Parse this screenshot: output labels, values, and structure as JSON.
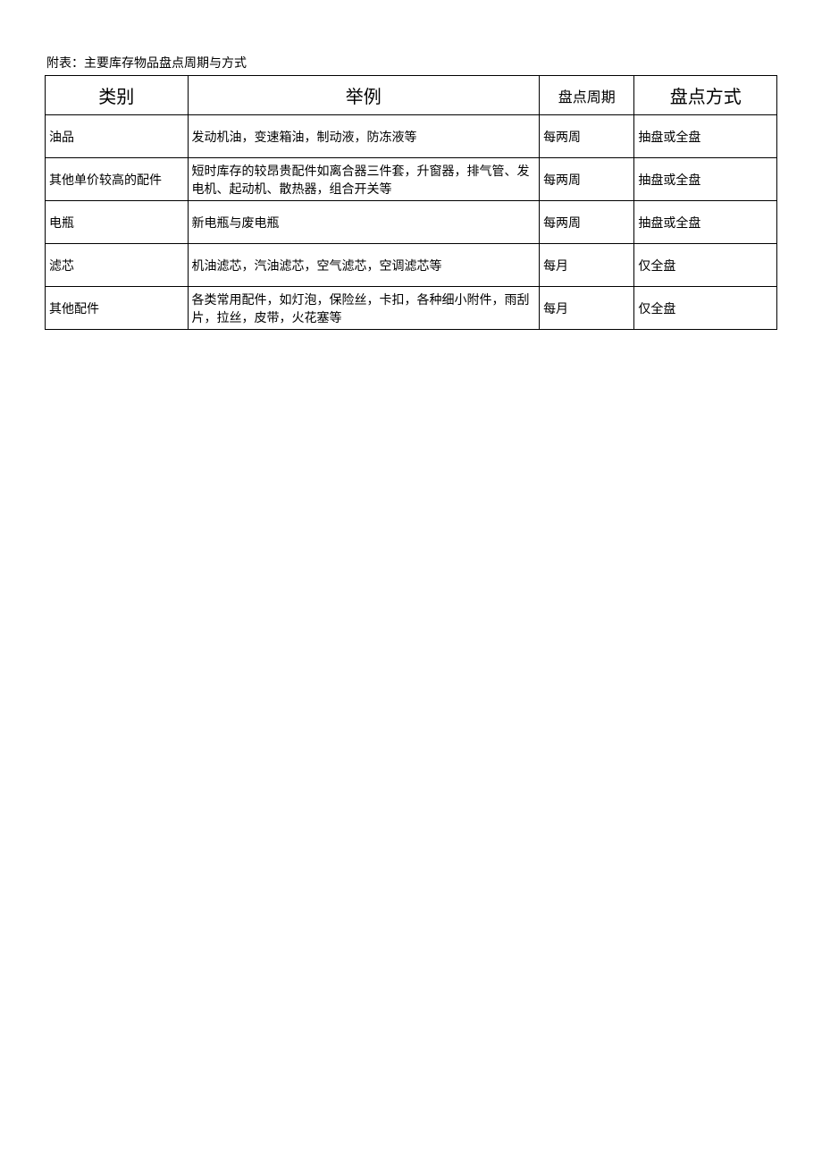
{
  "caption": "附表：主要库存物品盘点周期与方式",
  "table": {
    "headers": {
      "category": "类别",
      "example": "举例",
      "period": "盘点周期",
      "method": "盘点方式"
    },
    "rows": [
      {
        "category": "油品",
        "example": "发动机油，变速箱油，制动液，防冻液等",
        "period": "每两周",
        "method": "抽盘或全盘"
      },
      {
        "category": "其他单价较高的配件",
        "example": "短时库存的较昂贵配件如离合器三件套，升窗器，排气管、发电机、起动机、散热器，组合开关等",
        "period": "每两周",
        "method": "抽盘或全盘"
      },
      {
        "category": "电瓶",
        "example": "新电瓶与废电瓶",
        "period": "每两周",
        "method": "抽盘或全盘"
      },
      {
        "category": "滤芯",
        "example": "机油滤芯，汽油滤芯，空气滤芯，空调滤芯等",
        "period": "每月",
        "method": "仅全盘"
      },
      {
        "category": "其他配件",
        "example": "各类常用配件，如灯泡，保险丝，卡扣，各种细小附件，雨刮片，拉丝，皮带，火花塞等",
        "period": "每月",
        "method": "仅全盘"
      }
    ]
  }
}
